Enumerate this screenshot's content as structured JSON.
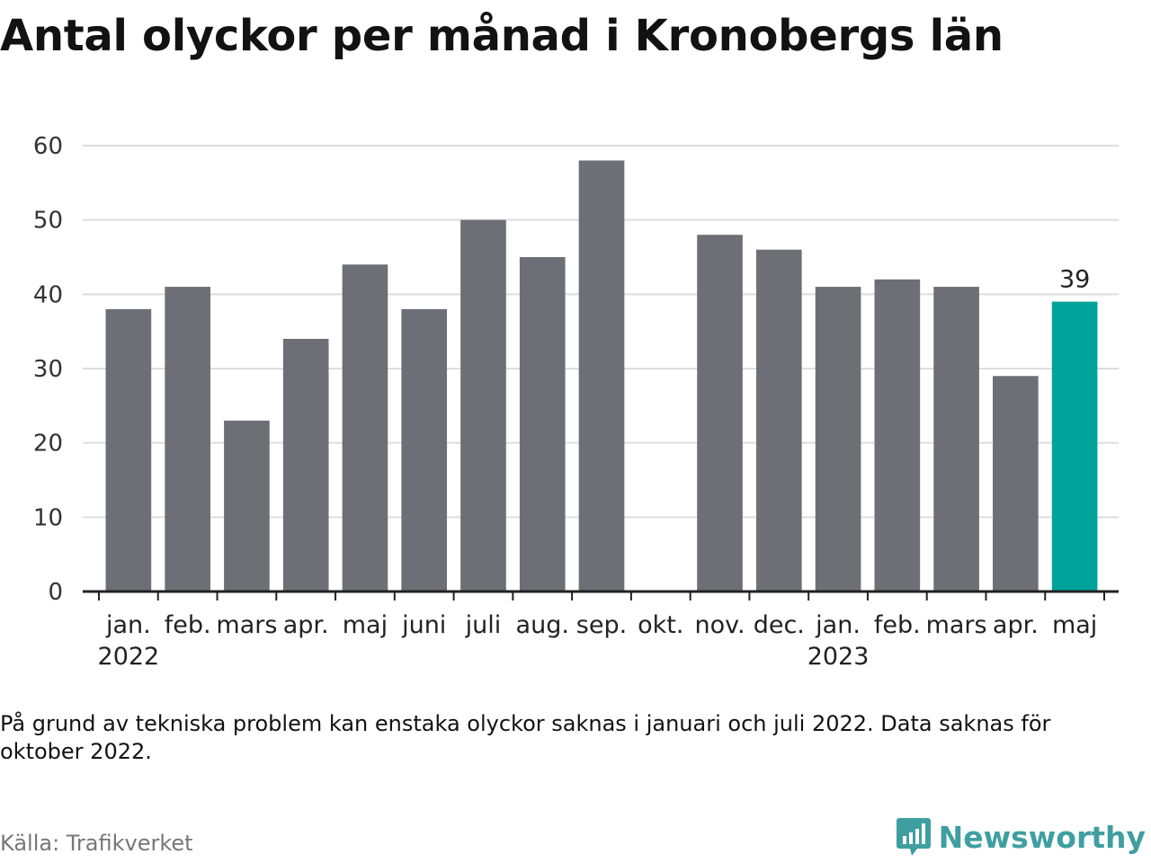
{
  "header": {
    "title": "Antal olyckor per månad i Kronobergs län"
  },
  "chart_data": {
    "type": "bar",
    "categories": [
      "jan.",
      "feb.",
      "mars",
      "apr.",
      "maj",
      "juni",
      "juli",
      "aug.",
      "sep.",
      "okt.",
      "nov.",
      "dec.",
      "jan.",
      "feb.",
      "mars",
      "apr.",
      "maj"
    ],
    "year_labels": [
      {
        "index": 0,
        "label": "2022"
      },
      {
        "index": 12,
        "label": "2023"
      }
    ],
    "values": [
      38,
      41,
      23,
      34,
      44,
      38,
      50,
      45,
      58,
      null,
      48,
      46,
      41,
      42,
      41,
      29,
      39
    ],
    "highlight_index": 16,
    "highlight_label": "39",
    "ylim": [
      0,
      60
    ],
    "yticks": [
      0,
      10,
      20,
      30,
      40,
      50,
      60
    ],
    "grid": true,
    "colors": {
      "bar": "#6e6e76",
      "highlight": "#00a39a",
      "grid": "#dddddd",
      "axis": "#222222"
    }
  },
  "footer": {
    "note": "På grund av tekniska problem kan enstaka olyckor saknas i januari och juli 2022. Data saknas för oktober 2022.",
    "source": "Källa: Trafikverket",
    "brand": "Newsworthy",
    "brand_icon": "bar-chart-speech-bubble-icon",
    "brand_color": "#3f9fa0"
  }
}
